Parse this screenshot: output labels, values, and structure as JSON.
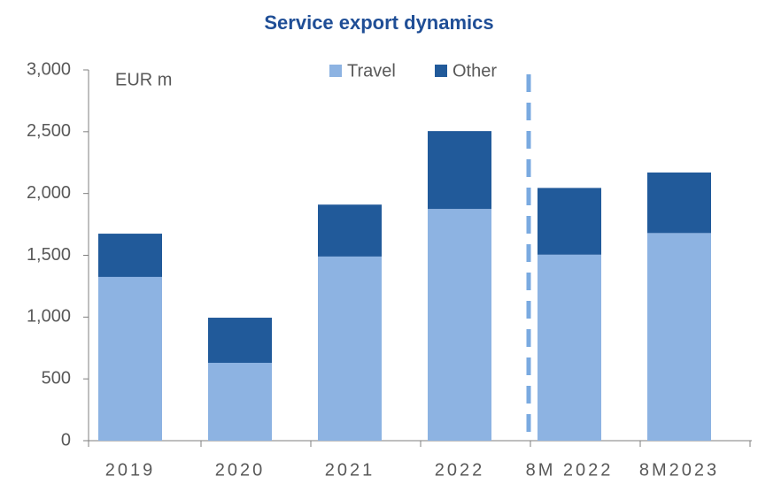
{
  "chart_data": {
    "type": "stacked_bar",
    "title": "Service export dynamics",
    "annotation": "EUR m",
    "categories": [
      "2019",
      "2020",
      "2021",
      "2022",
      "8M 2022",
      "8M2023"
    ],
    "series": [
      {
        "name": "Travel",
        "color": "#8db3e2",
        "values": [
          1325,
          630,
          1490,
          1875,
          1505,
          1680
        ]
      },
      {
        "name": "Other",
        "color": "#215a9a",
        "values": [
          350,
          365,
          420,
          630,
          540,
          490
        ]
      }
    ],
    "ylim": [
      0,
      3000
    ],
    "yticks": [
      0,
      500,
      {
        "value": 1000,
        "label": "1,000"
      },
      {
        "value": 1500,
        "label": "1,500"
      },
      {
        "value": 2000,
        "label": "2,000"
      },
      {
        "value": 2500,
        "label": "2,500"
      },
      {
        "value": 3000,
        "label": "3,000"
      }
    ],
    "legend": "top"
  }
}
